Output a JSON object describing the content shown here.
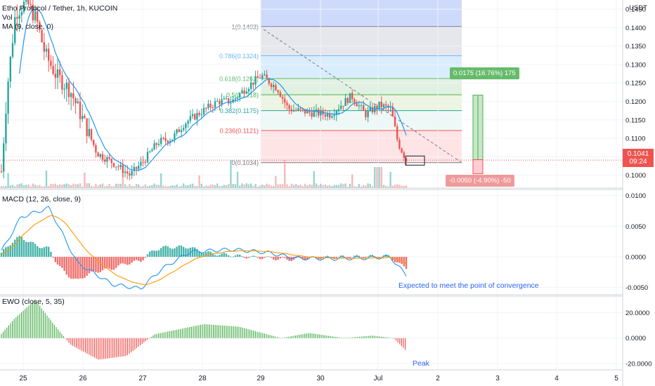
{
  "header": {
    "symbol_line": "Etho Protocol / Tether, 1h, KUCOIN",
    "vol_label": "Vol",
    "ma_label": "MA (9, close, 0)",
    "currency": "USDT"
  },
  "price_axis": {
    "ticks": [
      "0.1450",
      "0.1400",
      "0.1350",
      "0.1300",
      "0.1250",
      "0.1200",
      "0.1150",
      "0.1100",
      "0.1050",
      "0.1000"
    ],
    "last_price": "0.1041",
    "countdown": "09:24",
    "colors": {
      "last_price_bg": "#ef5350"
    }
  },
  "fib": {
    "levels": [
      {
        "label": "1(0.1403)",
        "value": 0.1403
      },
      {
        "label": "0.786(0.1324)",
        "value": 0.1324
      },
      {
        "label": "0.618(0.1262)",
        "value": 0.1262
      },
      {
        "label": "0.5(0.1218)",
        "value": 0.1218
      },
      {
        "label": "0.382(0.1175)",
        "value": 0.1175
      },
      {
        "label": "0.236(0.1121)",
        "value": 0.1121
      },
      {
        "label": "0(0.1034)",
        "value": 0.1034
      }
    ]
  },
  "measure": {
    "up_label": "0.0175 (16.76%) 175",
    "down_label": "-0.0050 (-4.90%) -50",
    "colors": {
      "up": "#66bb6a",
      "down": "#ef9a9a"
    }
  },
  "macd": {
    "title": "MACD (12, 26, close, 9)",
    "ticks": [
      "0.0100",
      "0.0050",
      "0.0000",
      "-0.0050"
    ],
    "annotation": "Expected to meet the point of convergence"
  },
  "ewo": {
    "title": "EWO (close, 5, 35)",
    "ticks": [
      "20.0000",
      "0.0000",
      "-20.0000"
    ],
    "annotation": "Peak"
  },
  "time_axis": {
    "ticks": [
      "25",
      "26",
      "27",
      "28",
      "29",
      "30",
      "Jul",
      "2",
      "3",
      "4",
      "5"
    ]
  },
  "chart_data": {
    "type": "candlestick",
    "price_range": [
      0.0965,
      0.1475
    ],
    "fib_range": [
      0.1034,
      0.1403
    ],
    "last_price": 0.1041,
    "macd_range": [
      -0.0062,
      0.011
    ],
    "ewo_range": [
      -25,
      33
    ]
  }
}
